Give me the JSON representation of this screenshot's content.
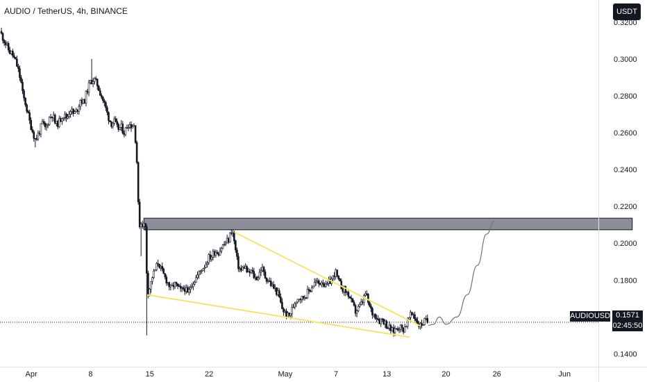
{
  "header": {
    "title": "AUDIO / TetherUS, 4h, BINANCE",
    "currency": "USDT"
  },
  "last_price": {
    "symbol_label": "AUDIOUSDT",
    "price": "0.1571",
    "countdown": "02:45:50",
    "value": 0.1571
  },
  "colors": {
    "candle": "#131722",
    "wedge": "#f5e56b",
    "zone_fill": "#787b86",
    "zone_border": "#131722",
    "projection": "#6f7377",
    "price_line": "#131722"
  },
  "chart_data": {
    "type": "candlestick",
    "title": "AUDIO / TetherUS, 4h, BINANCE",
    "ylabel": "USDT",
    "ylim": [
      0.133,
      0.332
    ],
    "y_ticks": [
      "0.3200",
      "0.3000",
      "0.2800",
      "0.2600",
      "0.2400",
      "0.2200",
      "0.2000",
      "0.1800",
      "0.1600",
      "0.1400"
    ],
    "x_ticks": [
      "Apr",
      "8",
      "15",
      "22",
      "May",
      "7",
      "13",
      "20",
      "26",
      "Jun"
    ],
    "x_tick_days": [
      0,
      7,
      14,
      21,
      30,
      36,
      42,
      49,
      55,
      63
    ],
    "xlim_days": [
      -3.7,
      67
    ],
    "price_path": [
      [
        -3.7,
        0.315
      ],
      [
        -3.4,
        0.312
      ],
      [
        -3.0,
        0.308
      ],
      [
        -2.6,
        0.304
      ],
      [
        -2.3,
        0.303
      ],
      [
        -1.9,
        0.299
      ],
      [
        -1.6,
        0.295
      ],
      [
        -1.2,
        0.287
      ],
      [
        -1.0,
        0.28
      ],
      [
        -0.7,
        0.276
      ],
      [
        -0.5,
        0.272
      ],
      [
        -0.2,
        0.266
      ],
      [
        0.2,
        0.26
      ],
      [
        0.5,
        0.256
      ],
      [
        0.9,
        0.26
      ],
      [
        1.3,
        0.265
      ],
      [
        1.7,
        0.262
      ],
      [
        2.1,
        0.268
      ],
      [
        2.5,
        0.27
      ],
      [
        2.9,
        0.264
      ],
      [
        3.3,
        0.266
      ],
      [
        3.7,
        0.27
      ],
      [
        4.2,
        0.268
      ],
      [
        4.6,
        0.273
      ],
      [
        5.0,
        0.27
      ],
      [
        5.4,
        0.272
      ],
      [
        5.8,
        0.278
      ],
      [
        6.2,
        0.276
      ],
      [
        6.6,
        0.283
      ],
      [
        7.0,
        0.288
      ],
      [
        7.4,
        0.289
      ],
      [
        7.8,
        0.286
      ],
      [
        8.2,
        0.281
      ],
      [
        8.6,
        0.276
      ],
      [
        9.0,
        0.27
      ],
      [
        9.4,
        0.265
      ],
      [
        9.8,
        0.266
      ],
      [
        10.2,
        0.262
      ],
      [
        10.6,
        0.263
      ],
      [
        11.0,
        0.26
      ],
      [
        11.4,
        0.265
      ],
      [
        11.8,
        0.264
      ],
      [
        12.2,
        0.264
      ],
      [
        12.5,
        0.242
      ],
      [
        12.7,
        0.21
      ],
      [
        13.0,
        0.211
      ],
      [
        13.3,
        0.21
      ],
      [
        13.5,
        0.208
      ],
      [
        13.7,
        0.173
      ],
      [
        14.0,
        0.176
      ],
      [
        14.3,
        0.182
      ],
      [
        14.6,
        0.185
      ],
      [
        15.0,
        0.19
      ],
      [
        15.3,
        0.186
      ],
      [
        15.7,
        0.182
      ],
      [
        16.1,
        0.179
      ],
      [
        16.5,
        0.175
      ],
      [
        16.9,
        0.178
      ],
      [
        17.3,
        0.176
      ],
      [
        17.7,
        0.174
      ],
      [
        18.1,
        0.176
      ],
      [
        18.5,
        0.172
      ],
      [
        18.9,
        0.178
      ],
      [
        19.3,
        0.18
      ],
      [
        19.7,
        0.183
      ],
      [
        20.1,
        0.186
      ],
      [
        20.5,
        0.188
      ],
      [
        20.9,
        0.192
      ],
      [
        21.3,
        0.193
      ],
      [
        21.7,
        0.196
      ],
      [
        22.1,
        0.195
      ],
      [
        22.5,
        0.198
      ],
      [
        22.9,
        0.2
      ],
      [
        23.3,
        0.202
      ],
      [
        23.7,
        0.208
      ],
      [
        24.0,
        0.2
      ],
      [
        24.4,
        0.188
      ],
      [
        24.8,
        0.185
      ],
      [
        25.2,
        0.188
      ],
      [
        25.6,
        0.183
      ],
      [
        26.0,
        0.185
      ],
      [
        26.4,
        0.181
      ],
      [
        26.8,
        0.182
      ],
      [
        27.2,
        0.187
      ],
      [
        27.6,
        0.182
      ],
      [
        28.0,
        0.18
      ],
      [
        28.4,
        0.177
      ],
      [
        28.8,
        0.175
      ],
      [
        29.2,
        0.172
      ],
      [
        29.6,
        0.165
      ],
      [
        30.0,
        0.162
      ],
      [
        30.4,
        0.16
      ],
      [
        30.8,
        0.164
      ],
      [
        31.2,
        0.169
      ],
      [
        31.6,
        0.171
      ],
      [
        32.0,
        0.17
      ],
      [
        32.4,
        0.172
      ],
      [
        32.8,
        0.174
      ],
      [
        33.2,
        0.177
      ],
      [
        33.6,
        0.179
      ],
      [
        34.0,
        0.178
      ],
      [
        34.4,
        0.18
      ],
      [
        34.8,
        0.176
      ],
      [
        35.2,
        0.179
      ],
      [
        35.6,
        0.181
      ],
      [
        35.9,
        0.185
      ],
      [
        36.3,
        0.179
      ],
      [
        36.7,
        0.176
      ],
      [
        37.1,
        0.174
      ],
      [
        37.5,
        0.172
      ],
      [
        37.9,
        0.167
      ],
      [
        38.3,
        0.163
      ],
      [
        38.7,
        0.165
      ],
      [
        39.1,
        0.168
      ],
      [
        39.5,
        0.173
      ],
      [
        39.9,
        0.166
      ],
      [
        40.3,
        0.162
      ],
      [
        40.7,
        0.161
      ],
      [
        41.1,
        0.158
      ],
      [
        41.5,
        0.159
      ],
      [
        41.9,
        0.156
      ],
      [
        42.3,
        0.154
      ],
      [
        42.7,
        0.152
      ],
      [
        43.1,
        0.154
      ],
      [
        43.5,
        0.155
      ],
      [
        43.9,
        0.153
      ],
      [
        44.3,
        0.156
      ],
      [
        44.7,
        0.16
      ],
      [
        45.1,
        0.162
      ],
      [
        45.5,
        0.158
      ],
      [
        45.9,
        0.155
      ],
      [
        46.3,
        0.157
      ],
      [
        46.6,
        0.158
      ],
      [
        46.9,
        0.1571
      ]
    ],
    "wedge_upper": [
      [
        24.0,
        0.206
      ],
      [
        46.0,
        0.155
      ]
    ],
    "wedge_lower": [
      [
        13.7,
        0.172
      ],
      [
        44.7,
        0.149
      ]
    ],
    "resistance_zone": {
      "x_days": [
        13.3,
        71.0
      ],
      "y_range": [
        0.2073,
        0.2136
      ]
    },
    "projection_path": [
      [
        46.9,
        0.1555
      ],
      [
        47.5,
        0.156
      ],
      [
        48.2,
        0.16
      ],
      [
        49.0,
        0.156
      ],
      [
        50.3,
        0.16
      ],
      [
        51.5,
        0.172
      ],
      [
        52.7,
        0.188
      ],
      [
        53.8,
        0.205
      ],
      [
        54.7,
        0.212
      ]
    ],
    "grid": false
  }
}
